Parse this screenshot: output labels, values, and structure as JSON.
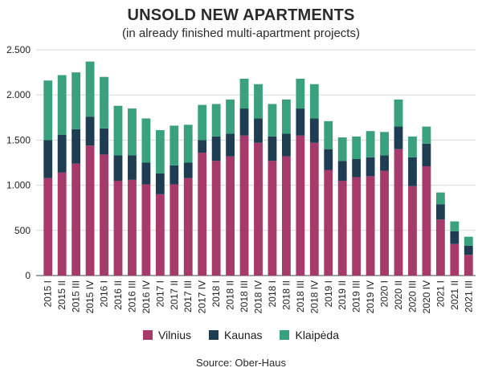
{
  "chart_data": {
    "type": "bar",
    "stacked": true,
    "title": "UNSOLD NEW APARTMENTS",
    "subtitle": "(in already finished multi-apartment projects)",
    "source": "Source: Ober-Haus",
    "ylim": [
      0,
      2500
    ],
    "yticks": [
      0,
      500,
      1000,
      1500,
      2000,
      2500
    ],
    "ytick_labels": [
      "0",
      "500",
      "1.000",
      "1.500",
      "2.000",
      "2.500"
    ],
    "grid": "horizontal",
    "legend_position": "bottom",
    "categories": [
      "2015 I",
      "2015 II",
      "2015 III",
      "2015 IV",
      "2016 I",
      "2016 II",
      "2016 III",
      "2016 IV",
      "2017 I",
      "2017 II",
      "2017 III",
      "2017 IV",
      "2018 I",
      "2018 II",
      "2018 III",
      "2018 IV",
      "2018 I",
      "2018 II",
      "2018 III",
      "2018 IV",
      "2019 I",
      "2019 II",
      "2019 III",
      "2019 IV",
      "2020 I",
      "2020 II",
      "2020 III",
      "2020 IV",
      "2021 I",
      "2021 II",
      "2021 III"
    ],
    "series": [
      {
        "name": "Vilnius",
        "color": "#a53a6b",
        "values": [
          1080,
          1140,
          1240,
          1440,
          1340,
          1050,
          1060,
          1010,
          900,
          1010,
          1080,
          1360,
          1270,
          1320,
          1550,
          1470,
          1270,
          1320,
          1550,
          1470,
          1170,
          1050,
          1090,
          1100,
          1160,
          1400,
          990,
          1210,
          620,
          350,
          230
        ]
      },
      {
        "name": "Kaunas",
        "color": "#1e3d52",
        "values": [
          420,
          420,
          380,
          320,
          290,
          280,
          270,
          240,
          230,
          210,
          170,
          140,
          270,
          250,
          300,
          270,
          270,
          250,
          300,
          270,
          230,
          220,
          200,
          210,
          170,
          250,
          320,
          250,
          170,
          140,
          100
        ]
      },
      {
        "name": "Klaipėda",
        "color": "#3aa17f",
        "values": [
          660,
          660,
          630,
          610,
          570,
          550,
          520,
          490,
          480,
          440,
          420,
          390,
          360,
          380,
          330,
          380,
          360,
          380,
          330,
          380,
          310,
          260,
          250,
          290,
          260,
          300,
          230,
          190,
          130,
          110,
          100
        ]
      }
    ]
  }
}
